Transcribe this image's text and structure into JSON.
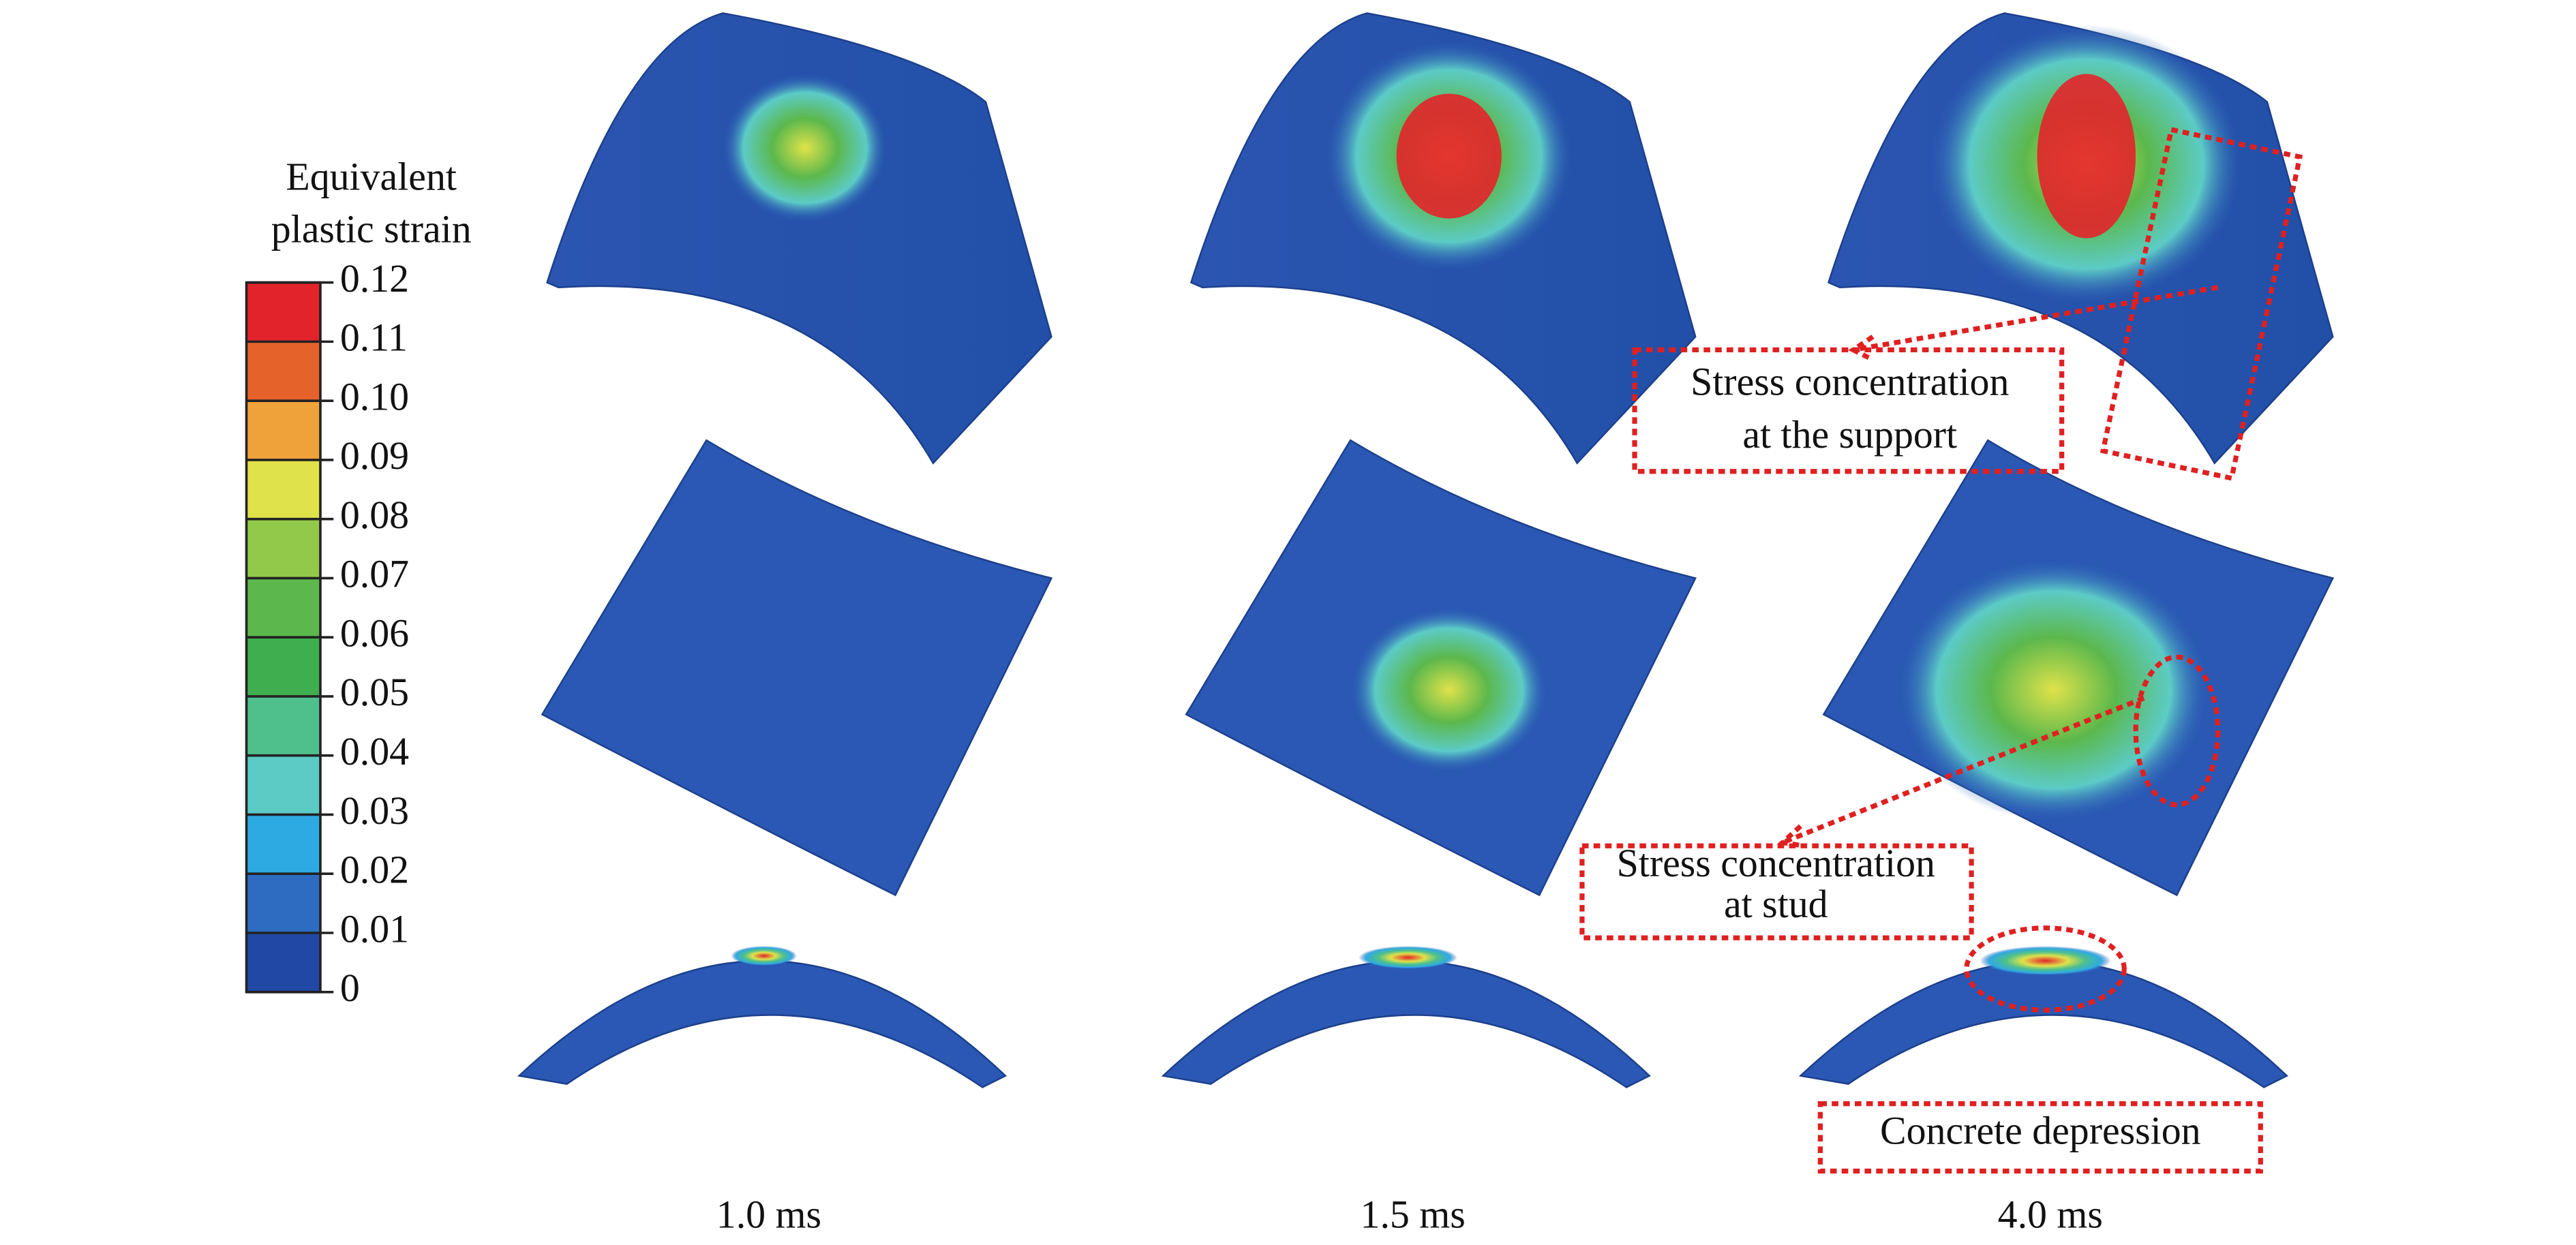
{
  "legend": {
    "title": [
      "Equivalent",
      "plastic strain"
    ],
    "levels": [
      "0.12",
      "0.11",
      "0.10",
      "0.09",
      "0.08",
      "0.07",
      "0.06",
      "0.05",
      "0.04",
      "0.03",
      "0.02",
      "0.01",
      "0"
    ],
    "colors": [
      "#e3232b",
      "#e5622a",
      "#f0a23a",
      "#dfe24a",
      "#93c94a",
      "#5cb84c",
      "#3fae4e",
      "#4fc08c",
      "#5ccbc6",
      "#2eaae2",
      "#2d6cc0",
      "#2148a4"
    ]
  },
  "times": [
    "1.0 ms",
    "1.5 ms",
    "4.0 ms"
  ],
  "annotations": [
    {
      "lines": [
        "Stress concentration",
        "at the support"
      ]
    },
    {
      "lines": [
        "Stress concentration",
        "at stud"
      ]
    },
    {
      "lines": [
        "Concrete depression"
      ]
    }
  ]
}
